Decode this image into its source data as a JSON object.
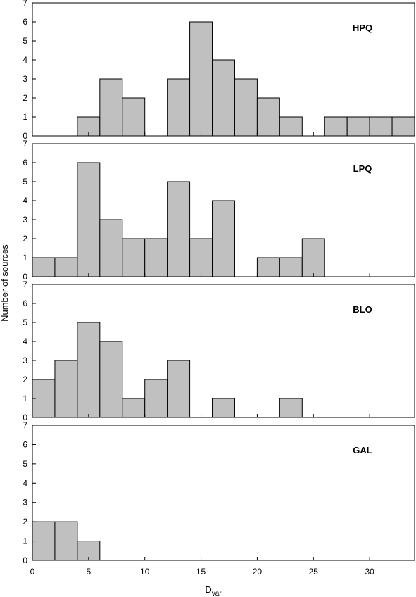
{
  "chart_data": {
    "type": "bar",
    "layout": "stacked panels sharing x axis",
    "xlabel": "D",
    "xlabel_subscript": "var",
    "ylabel": "Number of sources",
    "xlim": [
      0,
      34
    ],
    "xticks": [
      0,
      5,
      10,
      15,
      20,
      25,
      30
    ],
    "ylim": [
      0,
      7
    ],
    "yticks": [
      0,
      1,
      2,
      3,
      4,
      5,
      6,
      7
    ],
    "bin_width": 2,
    "bin_starts": [
      0,
      2,
      4,
      6,
      8,
      10,
      12,
      14,
      16,
      18,
      20,
      22,
      24,
      26,
      28,
      30,
      32
    ],
    "bar_color": "#c0c0c0",
    "grid": false,
    "panels": [
      {
        "name": "HPQ",
        "label_position": "top-right",
        "values": [
          0,
          0,
          1,
          3,
          2,
          0,
          3,
          6,
          4,
          3,
          2,
          1,
          0,
          1,
          1,
          1,
          1
        ]
      },
      {
        "name": "LPQ",
        "label_position": "top-right",
        "values": [
          1,
          1,
          6,
          3,
          2,
          2,
          5,
          2,
          4,
          0,
          1,
          1,
          2,
          0,
          0,
          0,
          0
        ]
      },
      {
        "name": "BLO",
        "label_position": "top-right",
        "values": [
          2,
          3,
          5,
          4,
          1,
          2,
          3,
          0,
          1,
          0,
          0,
          1,
          0,
          0,
          0,
          0,
          0
        ]
      },
      {
        "name": "GAL",
        "label_position": "top-right",
        "values": [
          2,
          2,
          1,
          0,
          0,
          0,
          0,
          0,
          0,
          0,
          0,
          0,
          0,
          0,
          0,
          0,
          0
        ]
      }
    ]
  }
}
